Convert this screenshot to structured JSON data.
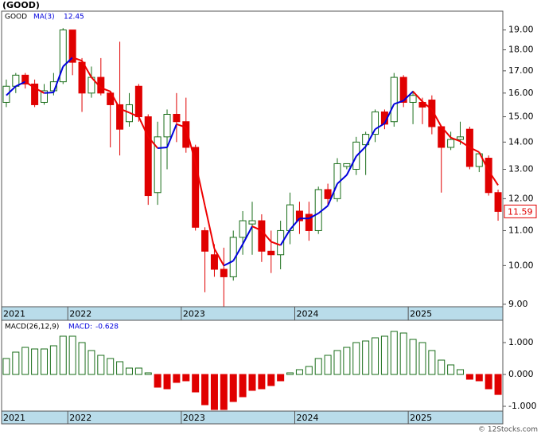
{
  "chart_data": [
    {
      "type": "candlestick",
      "title": "(GOOD)",
      "log_scale": true,
      "categories": [
        "2021",
        null,
        null,
        null,
        null,
        null,
        null,
        "2022",
        null,
        null,
        null,
        null,
        null,
        null,
        null,
        null,
        null,
        null,
        null,
        "2023",
        null,
        null,
        null,
        null,
        null,
        null,
        null,
        null,
        null,
        null,
        null,
        "2024",
        null,
        null,
        null,
        null,
        null,
        null,
        null,
        null,
        null,
        null,
        null,
        "2025",
        null,
        null,
        null,
        null,
        null,
        null,
        null,
        null,
        null
      ],
      "series": [
        {
          "name": "GOOD",
          "up_color": "#1a6e1a",
          "down_color": "#e00000",
          "open": [
            15.6,
            16.3,
            16.8,
            16.4,
            15.6,
            16.1,
            16.5,
            19.0,
            17.4,
            16.0,
            16.7,
            16.0,
            15.5,
            14.8,
            16.3,
            15.0,
            12.2,
            14.2,
            15.1,
            14.8,
            13.8,
            11.0,
            10.3,
            9.9,
            9.7,
            10.8,
            11.2,
            11.3,
            10.4,
            10.3,
            11.0,
            11.6,
            11.5,
            11.0,
            12.3,
            12.0,
            13.1,
            13.0,
            13.9,
            14.3,
            15.2,
            14.8,
            16.7,
            15.6,
            15.6,
            15.7,
            14.6,
            13.8,
            14.1,
            14.5,
            13.1,
            13.4,
            12.2
          ],
          "high": [
            16.6,
            16.9,
            16.9,
            16.6,
            16.4,
            16.9,
            19.1,
            19.0,
            17.6,
            17.2,
            17.6,
            16.1,
            18.4,
            16.0,
            16.4,
            15.1,
            14.8,
            15.3,
            16.0,
            15.8,
            13.9,
            11.1,
            10.6,
            10.5,
            11.0,
            11.6,
            11.9,
            11.5,
            11.0,
            11.3,
            12.2,
            11.9,
            11.9,
            12.4,
            12.5,
            13.4,
            13.2,
            14.2,
            14.4,
            15.3,
            15.3,
            16.9,
            16.8,
            16.1,
            15.8,
            15.9,
            14.6,
            14.4,
            14.8,
            14.6,
            13.6,
            13.5,
            12.3
          ],
          "low": [
            15.4,
            16.0,
            16.2,
            15.4,
            15.5,
            15.9,
            16.4,
            16.8,
            15.2,
            15.8,
            15.9,
            13.8,
            13.5,
            14.6,
            14.8,
            11.8,
            11.8,
            13.0,
            14.0,
            13.6,
            11.0,
            9.3,
            9.7,
            8.95,
            9.6,
            10.3,
            10.3,
            10.1,
            9.8,
            9.9,
            10.6,
            10.9,
            10.7,
            10.9,
            11.8,
            11.9,
            13.0,
            12.8,
            12.8,
            14.0,
            14.5,
            14.6,
            15.4,
            14.7,
            14.7,
            14.3,
            12.2,
            13.7,
            13.9,
            13.0,
            12.9,
            12.1,
            11.3
          ],
          "close": [
            16.3,
            16.8,
            16.4,
            15.5,
            16.1,
            16.5,
            19.0,
            17.4,
            16.0,
            16.7,
            16.0,
            15.5,
            14.5,
            15.5,
            15.0,
            12.1,
            14.2,
            15.1,
            14.8,
            13.8,
            11.1,
            10.4,
            9.9,
            9.7,
            10.8,
            11.3,
            11.3,
            10.4,
            10.3,
            11.0,
            11.8,
            11.3,
            11.0,
            12.3,
            12.0,
            13.2,
            13.2,
            14.0,
            14.3,
            15.2,
            14.7,
            16.7,
            15.6,
            15.9,
            15.4,
            14.6,
            13.8,
            14.1,
            14.2,
            13.1,
            13.56,
            12.2,
            11.59
          ]
        },
        {
          "name": "MA(3)",
          "type": "line",
          "up_color": "#0000dd",
          "down_color": "#ee0000",
          "values": [
            15.9,
            16.3,
            16.5,
            16.23,
            16,
            16.03,
            17.2,
            17.63,
            17.47,
            16.7,
            16.23,
            16.07,
            15.33,
            15.17,
            15,
            14.2,
            13.77,
            13.8,
            14.7,
            14.57,
            13.23,
            11.77,
            10.47,
            10,
            10.13,
            10.6,
            11.13,
            11,
            10.67,
            10.57,
            11.03,
            11.37,
            11.37,
            11.53,
            11.77,
            12.5,
            12.8,
            13.47,
            13.83,
            14.5,
            14.73,
            15.53,
            15.67,
            16.07,
            15.63,
            15.3,
            14.6,
            14.17,
            14.03,
            13.8,
            13.62,
            12.95,
            12.45
          ]
        }
      ],
      "ylim": [
        8.94,
        20.0
      ],
      "yticks": [
        {
          "value": 9,
          "label": "9.00"
        },
        {
          "value": 10,
          "label": "10.00"
        },
        {
          "value": 11,
          "label": "11.00"
        },
        {
          "value": 12,
          "label": "12.00"
        },
        {
          "value": 13,
          "label": "13.00"
        },
        {
          "value": 14,
          "label": "14.00"
        },
        {
          "value": 15,
          "label": "15.00"
        },
        {
          "value": 16,
          "label": "16.00"
        },
        {
          "value": 17,
          "label": "17.00"
        },
        {
          "value": 18,
          "label": "18.00"
        },
        {
          "value": 19,
          "label": "19.00"
        }
      ]
    },
    {
      "type": "bar",
      "title": "MACD(26,12,9)",
      "categories": [
        "2021",
        null,
        null,
        null,
        null,
        null,
        null,
        "2022",
        null,
        null,
        null,
        null,
        null,
        null,
        null,
        null,
        null,
        null,
        null,
        "2023",
        null,
        null,
        null,
        null,
        null,
        null,
        null,
        null,
        null,
        null,
        null,
        "2024",
        null,
        null,
        null,
        null,
        null,
        null,
        null,
        null,
        null,
        null,
        null,
        "2025",
        null,
        null,
        null,
        null,
        null,
        null,
        null,
        null,
        null
      ],
      "series": [
        {
          "name": "MACD:",
          "up_color": "#1a6e1a",
          "down_color": "#e00000",
          "values": [
            0.5,
            0.7,
            0.85,
            0.8,
            0.8,
            0.9,
            1.2,
            1.2,
            1.0,
            0.75,
            0.6,
            0.5,
            0.4,
            0.2,
            0.2,
            0.05,
            -0.4,
            -0.45,
            -0.25,
            -0.2,
            -0.55,
            -0.95,
            -1.1,
            -1.1,
            -0.85,
            -0.7,
            -0.5,
            -0.45,
            -0.35,
            -0.2,
            0.05,
            0.15,
            0.25,
            0.5,
            0.6,
            0.75,
            0.85,
            1.0,
            1.05,
            1.15,
            1.2,
            1.35,
            1.3,
            1.1,
            1.0,
            0.75,
            0.45,
            0.3,
            0.15,
            -0.15,
            -0.2,
            -0.45,
            -0.628
          ]
        }
      ],
      "ylim": [
        -1.15,
        1.7
      ],
      "yticks": [
        {
          "value": -1,
          "label": "-1.000"
        },
        {
          "value": 0,
          "label": "0.000"
        },
        {
          "value": 1,
          "label": "1.000"
        }
      ],
      "source": "© 12Stocks.com"
    }
  ]
}
